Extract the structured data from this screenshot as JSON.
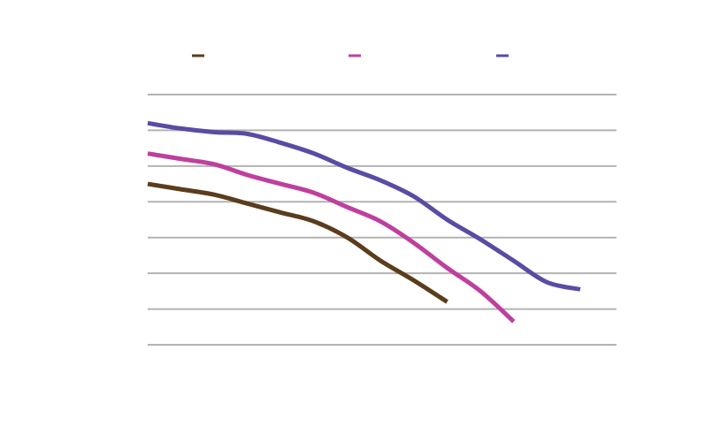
{
  "chart_data": {
    "type": "line",
    "title": "",
    "xlabel": "",
    "ylabel": "",
    "x": [
      0,
      1,
      2,
      3,
      4,
      5,
      6,
      7,
      8,
      9,
      10,
      11,
      12,
      13
    ],
    "ylim": [
      0,
      7
    ],
    "grid": true,
    "legend_position": "top",
    "series": [
      {
        "color": "#5a3d1c",
        "values": [
          4.5,
          4.35,
          4.2,
          3.95,
          3.7,
          3.45,
          3.0,
          2.35,
          1.8,
          1.2,
          null,
          null,
          null,
          null
        ]
      },
      {
        "color": "#bf3f9e",
        "values": [
          5.35,
          5.2,
          5.05,
          4.75,
          4.5,
          4.25,
          3.85,
          3.45,
          2.85,
          2.15,
          1.5,
          0.65,
          null,
          null
        ]
      },
      {
        "color": "#5a4ba3",
        "values": [
          6.2,
          6.05,
          5.95,
          5.9,
          5.65,
          5.35,
          4.95,
          4.6,
          4.15,
          3.5,
          2.95,
          2.35,
          1.75,
          1.55
        ]
      }
    ]
  }
}
